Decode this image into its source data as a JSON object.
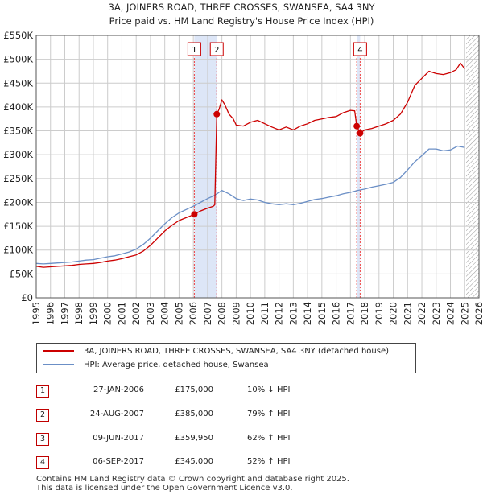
{
  "title_line1": "3A, JOINERS ROAD, THREE CROSSES, SWANSEA, SA4 3NY",
  "title_line2": "Price paid vs. HM Land Registry's House Price Index (HPI)",
  "colors": {
    "property": "#cc0000",
    "hpi": "#6b8fc6",
    "shade": "#dde6f7",
    "grid": "#cccccc",
    "marker_line": "#ee4444"
  },
  "chart_data": {
    "type": "line",
    "x_range": [
      1995,
      2026
    ],
    "y_range": [
      0,
      550000
    ],
    "x_ticks": [
      "1995",
      "1996",
      "1997",
      "1998",
      "1999",
      "2000",
      "2001",
      "2002",
      "2003",
      "2004",
      "2005",
      "2006",
      "2007",
      "2008",
      "2009",
      "2010",
      "2011",
      "2012",
      "2013",
      "2014",
      "2015",
      "2016",
      "2017",
      "2018",
      "2019",
      "2020",
      "2021",
      "2022",
      "2023",
      "2024",
      "2025",
      "2026"
    ],
    "y_ticks": [
      {
        "value": 0,
        "label": "£0"
      },
      {
        "value": 50000,
        "label": "£50K"
      },
      {
        "value": 100000,
        "label": "£100K"
      },
      {
        "value": 150000,
        "label": "£150K"
      },
      {
        "value": 200000,
        "label": "£200K"
      },
      {
        "value": 250000,
        "label": "£250K"
      },
      {
        "value": 300000,
        "label": "£300K"
      },
      {
        "value": 350000,
        "label": "£350K"
      },
      {
        "value": 400000,
        "label": "£400K"
      },
      {
        "value": 450000,
        "label": "£450K"
      },
      {
        "value": 500000,
        "label": "£500K"
      },
      {
        "value": 550000,
        "label": "£550K"
      }
    ],
    "grid": true,
    "shaded_periods": [
      [
        2006.07,
        2007.65
      ],
      [
        2017.44,
        2017.68
      ]
    ],
    "future_hatch_start": 2025.1,
    "series": [
      {
        "name": "3A, JOINERS ROAD, THREE CROSSES, SWANSEA, SA4 3NY (detached house)",
        "color": "#cc0000",
        "points": [
          [
            1995.0,
            66000
          ],
          [
            1995.5,
            64000
          ],
          [
            1996.0,
            65000
          ],
          [
            1996.5,
            66000
          ],
          [
            1997.0,
            67000
          ],
          [
            1997.5,
            68000
          ],
          [
            1998.0,
            70000
          ],
          [
            1998.5,
            71000
          ],
          [
            1999.0,
            72000
          ],
          [
            1999.5,
            74000
          ],
          [
            2000.0,
            77000
          ],
          [
            2000.5,
            79000
          ],
          [
            2001.0,
            82000
          ],
          [
            2001.5,
            86000
          ],
          [
            2002.0,
            90000
          ],
          [
            2002.5,
            98000
          ],
          [
            2003.0,
            110000
          ],
          [
            2003.5,
            125000
          ],
          [
            2004.0,
            140000
          ],
          [
            2004.5,
            152000
          ],
          [
            2005.0,
            162000
          ],
          [
            2005.5,
            168000
          ],
          [
            2006.07,
            175000
          ],
          [
            2006.5,
            182000
          ],
          [
            2007.0,
            188000
          ],
          [
            2007.4,
            192000
          ],
          [
            2007.5,
            195000
          ],
          [
            2007.64,
            385000
          ],
          [
            2007.8,
            395000
          ],
          [
            2008.0,
            415000
          ],
          [
            2008.2,
            405000
          ],
          [
            2008.5,
            385000
          ],
          [
            2008.8,
            375000
          ],
          [
            2009.0,
            362000
          ],
          [
            2009.5,
            360000
          ],
          [
            2010.0,
            368000
          ],
          [
            2010.5,
            372000
          ],
          [
            2011.0,
            365000
          ],
          [
            2011.5,
            358000
          ],
          [
            2012.0,
            352000
          ],
          [
            2012.5,
            358000
          ],
          [
            2013.0,
            352000
          ],
          [
            2013.5,
            360000
          ],
          [
            2014.0,
            365000
          ],
          [
            2014.5,
            372000
          ],
          [
            2015.0,
            375000
          ],
          [
            2015.5,
            378000
          ],
          [
            2016.0,
            380000
          ],
          [
            2016.5,
            388000
          ],
          [
            2017.0,
            393000
          ],
          [
            2017.3,
            392000
          ],
          [
            2017.44,
            359950
          ],
          [
            2017.68,
            345000
          ],
          [
            2018.0,
            352000
          ],
          [
            2018.5,
            355000
          ],
          [
            2019.0,
            360000
          ],
          [
            2019.5,
            365000
          ],
          [
            2020.0,
            372000
          ],
          [
            2020.5,
            385000
          ],
          [
            2021.0,
            410000
          ],
          [
            2021.5,
            445000
          ],
          [
            2022.0,
            460000
          ],
          [
            2022.5,
            475000
          ],
          [
            2023.0,
            470000
          ],
          [
            2023.5,
            468000
          ],
          [
            2024.0,
            472000
          ],
          [
            2024.4,
            478000
          ],
          [
            2024.7,
            492000
          ],
          [
            2025.0,
            480000
          ]
        ]
      },
      {
        "name": "HPI: Average price, detached house, Swansea",
        "color": "#6b8fc6",
        "points": [
          [
            1995.0,
            72000
          ],
          [
            1995.5,
            71000
          ],
          [
            1996.0,
            72000
          ],
          [
            1996.5,
            73000
          ],
          [
            1997.0,
            74000
          ],
          [
            1997.5,
            75000
          ],
          [
            1998.0,
            77000
          ],
          [
            1998.5,
            79000
          ],
          [
            1999.0,
            80000
          ],
          [
            1999.5,
            83000
          ],
          [
            2000.0,
            86000
          ],
          [
            2000.5,
            88000
          ],
          [
            2001.0,
            92000
          ],
          [
            2001.5,
            96000
          ],
          [
            2002.0,
            102000
          ],
          [
            2002.5,
            112000
          ],
          [
            2003.0,
            125000
          ],
          [
            2003.5,
            140000
          ],
          [
            2004.0,
            155000
          ],
          [
            2004.5,
            168000
          ],
          [
            2005.0,
            178000
          ],
          [
            2005.5,
            185000
          ],
          [
            2006.0,
            192000
          ],
          [
            2006.5,
            200000
          ],
          [
            2007.0,
            208000
          ],
          [
            2007.5,
            215000
          ],
          [
            2008.0,
            225000
          ],
          [
            2008.5,
            218000
          ],
          [
            2009.0,
            208000
          ],
          [
            2009.5,
            204000
          ],
          [
            2010.0,
            207000
          ],
          [
            2010.5,
            205000
          ],
          [
            2011.0,
            200000
          ],
          [
            2011.5,
            197000
          ],
          [
            2012.0,
            195000
          ],
          [
            2012.5,
            197000
          ],
          [
            2013.0,
            195000
          ],
          [
            2013.5,
            198000
          ],
          [
            2014.0,
            202000
          ],
          [
            2014.5,
            206000
          ],
          [
            2015.0,
            208000
          ],
          [
            2015.5,
            211000
          ],
          [
            2016.0,
            214000
          ],
          [
            2016.5,
            218000
          ],
          [
            2017.0,
            221000
          ],
          [
            2017.5,
            225000
          ],
          [
            2018.0,
            228000
          ],
          [
            2018.5,
            232000
          ],
          [
            2019.0,
            235000
          ],
          [
            2019.5,
            238000
          ],
          [
            2020.0,
            242000
          ],
          [
            2020.5,
            252000
          ],
          [
            2021.0,
            268000
          ],
          [
            2021.5,
            285000
          ],
          [
            2022.0,
            298000
          ],
          [
            2022.5,
            312000
          ],
          [
            2023.0,
            312000
          ],
          [
            2023.5,
            308000
          ],
          [
            2024.0,
            310000
          ],
          [
            2024.5,
            318000
          ],
          [
            2025.0,
            315000
          ]
        ]
      }
    ],
    "sales": [
      {
        "marker": "1",
        "x": 2006.07,
        "y": 175000
      },
      {
        "marker": "2",
        "x": 2007.64,
        "y": 385000
      },
      {
        "marker": "3",
        "x": 2017.44,
        "y": 359950
      },
      {
        "marker": "4",
        "x": 2017.68,
        "y": 345000
      }
    ],
    "marker_labels": [
      {
        "marker": "1",
        "x": 2006.07
      },
      {
        "marker": "2",
        "x": 2007.64
      },
      {
        "marker": "4",
        "x": 2017.68
      }
    ]
  },
  "legend": {
    "property_label": "3A, JOINERS ROAD, THREE CROSSES, SWANSEA, SA4 3NY (detached house)",
    "hpi_label": "HPI: Average price, detached house, Swansea"
  },
  "transactions": [
    {
      "num": "1",
      "date": "27-JAN-2006",
      "price": "£175,000",
      "hpi": "10% ↓ HPI"
    },
    {
      "num": "2",
      "date": "24-AUG-2007",
      "price": "£385,000",
      "hpi": "79% ↑ HPI"
    },
    {
      "num": "3",
      "date": "09-JUN-2017",
      "price": "£359,950",
      "hpi": "62% ↑ HPI"
    },
    {
      "num": "4",
      "date": "06-SEP-2017",
      "price": "£345,000",
      "hpi": "52% ↑ HPI"
    }
  ],
  "footer_line1": "Contains HM Land Registry data © Crown copyright and database right 2025.",
  "footer_line2": "This data is licensed under the Open Government Licence v3.0."
}
